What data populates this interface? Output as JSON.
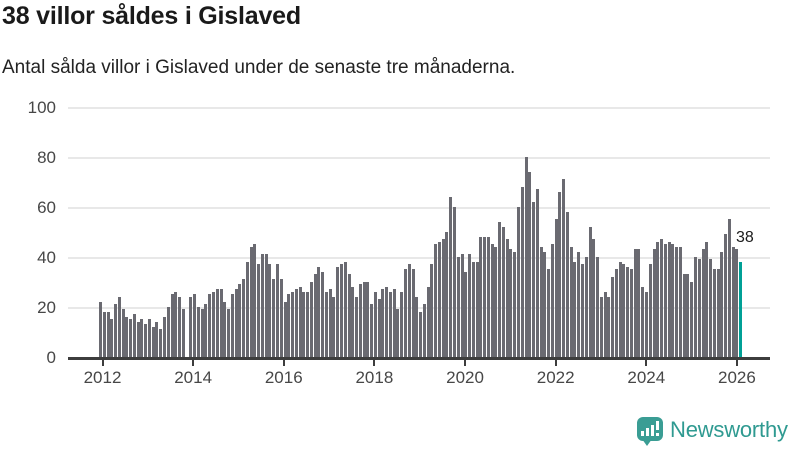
{
  "header": {
    "title": "38 villor såldes i Gislaved",
    "subtitle": "Antal sålda villor i Gislaved under de senaste tre månaderna."
  },
  "annotation": {
    "last_value_label": "38"
  },
  "branding": {
    "logo_text": "Newsworthy",
    "logo_icon": "bar-chart-speech-bubble",
    "logo_color": "#2f9a91"
  },
  "colors": {
    "bar": "#6a6a71",
    "highlight_bar": "#00a096",
    "gridline": "#e8e8e8",
    "axis": "#3d3d3d",
    "axis_label": "#474747",
    "title_text": "#1a1a1a"
  },
  "chart_data": {
    "type": "bar",
    "title": "38 villor såldes i Gislaved",
    "subtitle": "Antal sålda villor i Gislaved under de senaste tre månaderna.",
    "x_start_month": "2012-01",
    "x_end_month": "2026-03",
    "x_tick_labels": [
      "2012",
      "2014",
      "2016",
      "2018",
      "2020",
      "2022",
      "2024",
      "2026"
    ],
    "x_tick_month_indices": [
      0,
      24,
      48,
      72,
      96,
      120,
      144,
      168
    ],
    "y_ticks": [
      0,
      20,
      40,
      60,
      80,
      100
    ],
    "ylim": [
      0,
      100
    ],
    "grid": "horizontal",
    "legend": "none",
    "highlight_index": 170,
    "highlight_value": 38,
    "values": [
      22,
      18,
      18,
      15,
      21,
      24,
      19,
      16,
      15,
      17,
      14,
      15,
      13,
      15,
      12,
      14,
      11,
      16,
      20,
      25,
      26,
      24,
      19,
      0,
      24,
      25,
      20,
      19,
      21,
      25,
      26,
      27,
      27,
      22,
      19,
      25,
      27,
      29,
      31,
      38,
      44,
      45,
      37,
      41,
      41,
      37,
      31,
      37,
      31,
      22,
      25,
      26,
      27,
      28,
      26,
      26,
      30,
      33,
      36,
      34,
      26,
      27,
      24,
      36,
      37,
      38,
      33,
      28,
      24,
      29,
      30,
      30,
      21,
      26,
      23,
      27,
      28,
      26,
      27,
      19,
      26,
      35,
      37,
      35,
      24,
      18,
      21,
      28,
      37,
      45,
      46,
      47,
      50,
      64,
      60,
      40,
      41,
      34,
      41,
      38,
      38,
      48,
      48,
      48,
      45,
      44,
      54,
      52,
      47,
      43,
      42,
      60,
      68,
      80,
      74,
      62,
      67,
      44,
      42,
      35,
      45,
      55,
      66,
      71,
      58,
      44,
      38,
      42,
      37,
      40,
      52,
      47,
      40,
      24,
      26,
      24,
      32,
      35,
      38,
      37,
      36,
      35,
      43,
      43,
      28,
      26,
      37,
      43,
      46,
      47,
      45,
      46,
      45,
      44,
      44,
      33,
      33,
      30,
      40,
      39,
      43,
      46,
      39,
      35,
      35,
      42,
      49,
      55,
      44,
      43,
      38
    ]
  }
}
